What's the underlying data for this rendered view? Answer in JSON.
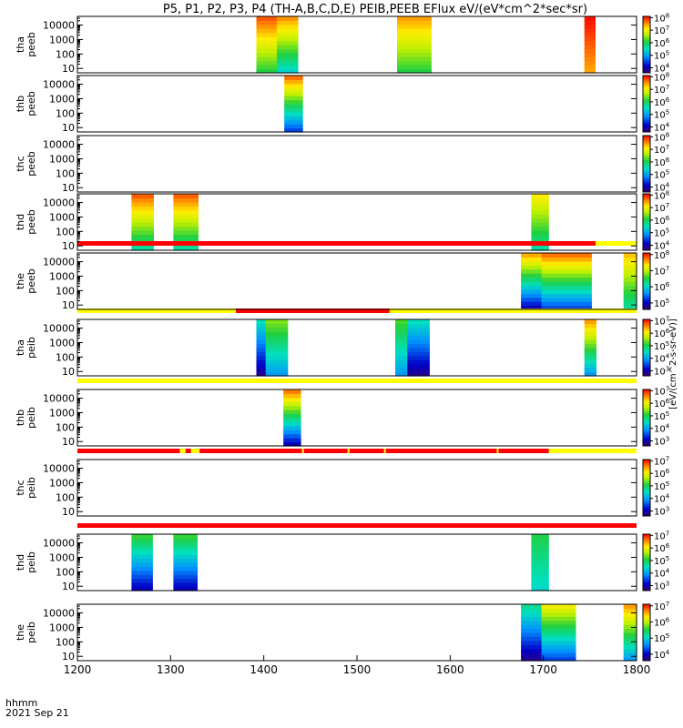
{
  "chart_data": {
    "type": "heatmap",
    "title": "P5, P1, P2, P3, P4 (TH-A,B,C,D,E) PEIB,PEEB EFlux eV/(eV*cm^2*sec*sr)",
    "x_ticks": [
      "1200",
      "1300",
      "1400",
      "1500",
      "1600",
      "1700",
      "1800"
    ],
    "xlim": [
      1200,
      1800
    ],
    "x_axis_label": "hhmm",
    "x_axis_date": "2021 Sep 21",
    "colorbar_label": "[eV/(cm^2-s-sr-eV)]",
    "y_scale": "log",
    "y_ticks": [
      "10",
      "100",
      "1000",
      "10000"
    ],
    "panels": [
      {
        "label": "tha peeb",
        "ylim": [
          5,
          40000
        ],
        "cbar_ticks": [
          "10^4",
          "10^5",
          "10^6",
          "10^7",
          "10^8"
        ],
        "cbar_exp": [
          3.6,
          8.1
        ],
        "blocks": [
          {
            "t0": 1392,
            "t1": 1416,
            "cmin": 0.55,
            "cmax": 0.95
          },
          {
            "t0": 1414,
            "t1": 1437,
            "cmin": 0.4,
            "cmax": 0.9
          },
          {
            "t0": 1543,
            "t1": 1580,
            "cmin": 0.55,
            "cmax": 0.88
          },
          {
            "t0": 1744,
            "t1": 1756,
            "cmin": 0.85,
            "cmax": 1.0
          }
        ]
      },
      {
        "label": "thb peeb",
        "ylim": [
          5,
          40000
        ],
        "cbar_ticks": [
          "10^4",
          "10^5",
          "10^6",
          "10^7",
          "10^8"
        ],
        "cbar_exp": [
          3.6,
          8.1
        ],
        "blocks": [
          {
            "t0": 1422,
            "t1": 1442,
            "cmin": 0.2,
            "cmax": 0.95
          }
        ]
      },
      {
        "label": "thc peeb",
        "ylim": [
          5,
          40000
        ],
        "cbar_ticks": [
          "10^4",
          "10^5",
          "10^6",
          "10^7",
          "10^8"
        ],
        "cbar_exp": [
          3.6,
          8.1
        ],
        "blocks": []
      },
      {
        "label": "thd peeb",
        "ylim": [
          5,
          40000
        ],
        "cbar_ticks": [
          "10^4",
          "10^5",
          "10^6",
          "10^7",
          "10^8"
        ],
        "cbar_exp": [
          3.6,
          8.1
        ],
        "blocks": [
          {
            "t0": 1258,
            "t1": 1282,
            "cmin": 0.45,
            "cmax": 0.95
          },
          {
            "t0": 1303,
            "t1": 1330,
            "cmin": 0.45,
            "cmax": 0.95
          },
          {
            "t0": 1687,
            "t1": 1706,
            "cmin": 0.45,
            "cmax": 0.8
          }
        ]
      },
      {
        "label": "the peeb",
        "ylim": [
          5,
          40000
        ],
        "cbar_ticks": [
          "10^5",
          "10^6",
          "10^7",
          "10^8"
        ],
        "cbar_exp": [
          4.6,
          8.1
        ],
        "blocks": [
          {
            "t0": 1676,
            "t1": 1700,
            "cmin": 0.1,
            "cmax": 0.9
          },
          {
            "t0": 1698,
            "t1": 1752,
            "cmin": 0.2,
            "cmax": 0.95
          },
          {
            "t0": 1786,
            "t1": 1800,
            "cmin": 0.45,
            "cmax": 0.85
          }
        ]
      },
      {
        "label": "tha peib",
        "ylim": [
          5,
          40000
        ],
        "cbar_ticks": [
          "10^3",
          "10^4",
          "10^5",
          "10^6",
          "10^7"
        ],
        "cbar_exp": [
          2.6,
          7.1
        ],
        "blocks": [
          {
            "t0": 1392,
            "t1": 1404,
            "cmin": 0.05,
            "cmax": 0.45
          },
          {
            "t0": 1402,
            "t1": 1426,
            "cmin": 0.3,
            "cmax": 0.65
          },
          {
            "t0": 1541,
            "t1": 1556,
            "cmin": 0.3,
            "cmax": 0.6
          },
          {
            "t0": 1554,
            "t1": 1578,
            "cmin": 0.05,
            "cmax": 0.45
          },
          {
            "t0": 1744,
            "t1": 1757,
            "cmin": 0.3,
            "cmax": 0.9
          }
        ]
      },
      {
        "label": "thb peib",
        "ylim": [
          5,
          40000
        ],
        "cbar_ticks": [
          "10^3",
          "10^4",
          "10^5",
          "10^6",
          "10^7"
        ],
        "cbar_exp": [
          2.6,
          7.1
        ],
        "blocks": [
          {
            "t0": 1421,
            "t1": 1440,
            "cmin": 0.1,
            "cmax": 0.95
          }
        ]
      },
      {
        "label": "thc peib",
        "ylim": [
          5,
          40000
        ],
        "cbar_ticks": [
          "10^3",
          "10^4",
          "10^5",
          "10^6",
          "10^7"
        ],
        "cbar_exp": [
          2.6,
          7.1
        ],
        "blocks": []
      },
      {
        "label": "thd peib",
        "ylim": [
          5,
          40000
        ],
        "cbar_ticks": [
          "10^3",
          "10^4",
          "10^5",
          "10^6",
          "10^7"
        ],
        "cbar_exp": [
          2.6,
          7.1
        ],
        "blocks": [
          {
            "t0": 1258,
            "t1": 1281,
            "cmin": 0.1,
            "cmax": 0.6
          },
          {
            "t0": 1303,
            "t1": 1329,
            "cmin": 0.1,
            "cmax": 0.6
          },
          {
            "t0": 1687,
            "t1": 1706,
            "cmin": 0.4,
            "cmax": 0.55
          }
        ]
      },
      {
        "label": "the peib",
        "ylim": [
          5,
          40000
        ],
        "cbar_ticks": [
          "10^4",
          "10^5",
          "10^6",
          "10^7"
        ],
        "cbar_exp": [
          3.6,
          7.1
        ],
        "blocks": [
          {
            "t0": 1676,
            "t1": 1700,
            "cmin": 0.05,
            "cmax": 0.5
          },
          {
            "t0": 1698,
            "t1": 1735,
            "cmin": 0.2,
            "cmax": 0.8
          },
          {
            "t0": 1786,
            "t1": 1800,
            "cmin": 0.3,
            "cmax": 0.9
          }
        ]
      }
    ],
    "mode_bars": [
      {
        "after_panel": 4,
        "segments": [
          {
            "t0": 1200,
            "t1": 1756,
            "color": "#ff0000"
          },
          {
            "t0": 1756,
            "t1": 1800,
            "color": "#ffff00"
          }
        ]
      },
      {
        "after_panel": 5,
        "segments": [
          {
            "t0": 1200,
            "t1": 1370,
            "color": "#ffff00"
          },
          {
            "t0": 1370,
            "t1": 1535,
            "color": "#ff0000"
          },
          {
            "t0": 1535,
            "t1": 1800,
            "color": "#ffff00"
          }
        ]
      },
      {
        "after_panel": 6,
        "segments": [
          {
            "t0": 1200,
            "t1": 1800,
            "color": "#ffff00"
          }
        ]
      },
      {
        "after_panel": 7,
        "segments": [
          {
            "t0": 1200,
            "t1": 1310,
            "color": "#ff0000"
          },
          {
            "t0": 1310,
            "t1": 1316,
            "color": "#ffff00"
          },
          {
            "t0": 1316,
            "t1": 1322,
            "color": "#ff0000"
          },
          {
            "t0": 1322,
            "t1": 1331,
            "color": "#ffff00"
          },
          {
            "t0": 1331,
            "t1": 1441,
            "color": "#ff0000"
          },
          {
            "t0": 1441,
            "t1": 1443,
            "color": "#ffff00"
          },
          {
            "t0": 1443,
            "t1": 1490,
            "color": "#ff0000"
          },
          {
            "t0": 1490,
            "t1": 1492,
            "color": "#ffff00"
          },
          {
            "t0": 1492,
            "t1": 1529,
            "color": "#ff0000"
          },
          {
            "t0": 1529,
            "t1": 1531,
            "color": "#ffff00"
          },
          {
            "t0": 1531,
            "t1": 1650,
            "color": "#ff0000"
          },
          {
            "t0": 1650,
            "t1": 1652,
            "color": "#ffff00"
          },
          {
            "t0": 1652,
            "t1": 1706,
            "color": "#ff0000"
          },
          {
            "t0": 1706,
            "t1": 1800,
            "color": "#ffff00"
          }
        ]
      },
      {
        "after_panel": 8,
        "segments": [
          {
            "t0": 1200,
            "t1": 1800,
            "color": "#ff0000"
          }
        ]
      }
    ]
  }
}
